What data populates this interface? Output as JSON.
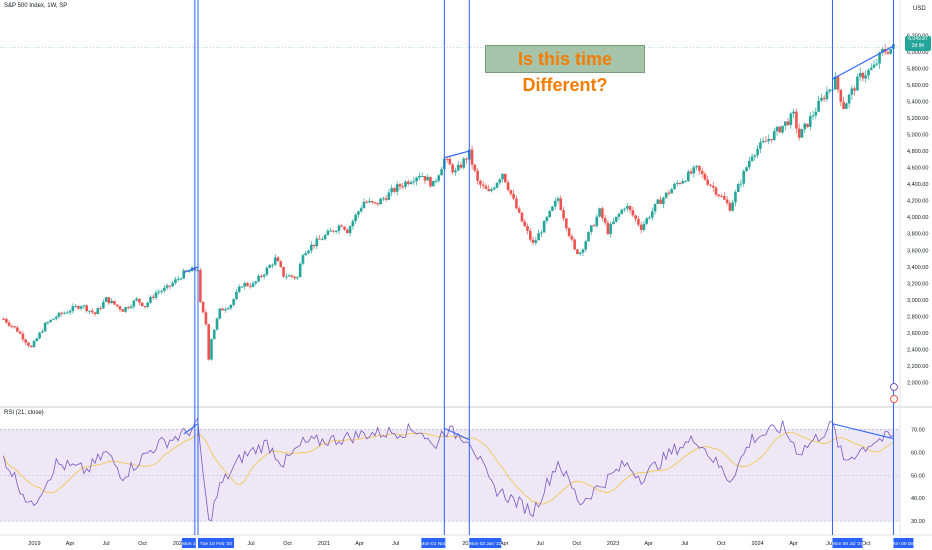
{
  "header": {
    "symbol_title": "S&P 500 Index, 1W, SP",
    "currency": "USD",
    "rsi_title": "RSI (21, close)"
  },
  "annotation": {
    "text": "Is this time Different?"
  },
  "price_tag": {
    "value": "6,049.87",
    "countdown": "2d 9h"
  },
  "colors": {
    "up": "#26a69a",
    "down": "#ef5350",
    "accent_line": "#2962ff",
    "rsi_line": "#7e57c2",
    "rsi_ma": "#f5c542",
    "rsi_band": "#ede7f6",
    "annotation_bg": "#a5c4aa",
    "annotation_text": "#f57c00"
  },
  "icons": [
    "alert-icon",
    "flag-icon"
  ],
  "chart_data": [
    {
      "type": "candlestick",
      "title": "S&P 500 Index, 1W, SP",
      "ylabel": "USD",
      "ylim": [
        1850,
        6300
      ],
      "y_ticks": [
        "6,200.00",
        "6,000.00",
        "5,800.00",
        "5,600.00",
        "5,400.00",
        "5,200.00",
        "5,000.00",
        "4,800.00",
        "4,600.00",
        "4,400.00",
        "4,200.00",
        "4,000.00",
        "3,800.00",
        "3,600.00",
        "3,400.00",
        "3,200.00",
        "3,000.00",
        "2,800.00",
        "2,600.00",
        "2,400.00",
        "2,200.00",
        "2,000.00"
      ],
      "x_ticks": [
        "2019",
        "Apr",
        "Jul",
        "Oct",
        "2020",
        "Apr",
        "Jul",
        "Oct",
        "2021",
        "Apr",
        "Jul",
        "Oct",
        "2022",
        "Apr",
        "Jul",
        "Oct",
        "2023",
        "Apr",
        "Jul",
        "Oct",
        "2024",
        "Apr",
        "Jul",
        "Oct"
      ],
      "x_range": [
        "2018-10",
        "2024-12"
      ],
      "last_close": 6049.87,
      "close_anchors": [
        [
          "2018-10-15",
          2770
        ],
        [
          "2018-11-19",
          2630
        ],
        [
          "2018-12-24",
          2420
        ],
        [
          "2019-01-28",
          2700
        ],
        [
          "2019-02-25",
          2800
        ],
        [
          "2019-04-01",
          2880
        ],
        [
          "2019-04-29",
          2940
        ],
        [
          "2019-06-03",
          2830
        ],
        [
          "2019-07-01",
          3010
        ],
        [
          "2019-08-12",
          2880
        ],
        [
          "2019-09-16",
          3000
        ],
        [
          "2019-10-07",
          2930
        ],
        [
          "2019-11-04",
          3090
        ],
        [
          "2019-12-02",
          3140
        ],
        [
          "2020-01-13",
          3320
        ],
        [
          "2020-02-17",
          3380
        ],
        [
          "2020-02-24",
          2950
        ],
        [
          "2020-03-09",
          2710
        ],
        [
          "2020-03-16",
          2300
        ],
        [
          "2020-03-23",
          2540
        ],
        [
          "2020-04-13",
          2870
        ],
        [
          "2020-05-11",
          2950
        ],
        [
          "2020-06-08",
          3190
        ],
        [
          "2020-07-06",
          3180
        ],
        [
          "2020-08-10",
          3370
        ],
        [
          "2020-09-01",
          3500
        ],
        [
          "2020-09-21",
          3300
        ],
        [
          "2020-10-26",
          3270
        ],
        [
          "2020-11-09",
          3580
        ],
        [
          "2020-12-28",
          3750
        ],
        [
          "2021-02-15",
          3920
        ],
        [
          "2021-03-01",
          3840
        ],
        [
          "2021-04-12",
          4190
        ],
        [
          "2021-05-10",
          4150
        ],
        [
          "2021-07-05",
          4360
        ],
        [
          "2021-09-01",
          4530
        ],
        [
          "2021-10-04",
          4390
        ],
        [
          "2021-11-01",
          4700
        ],
        [
          "2021-11-29",
          4540
        ],
        [
          "2022-01-03",
          4770
        ],
        [
          "2022-01-24",
          4420
        ],
        [
          "2022-02-21",
          4290
        ],
        [
          "2022-03-28",
          4540
        ],
        [
          "2022-05-09",
          4020
        ],
        [
          "2022-06-13",
          3670
        ],
        [
          "2022-07-04",
          3850
        ],
        [
          "2022-08-15",
          4230
        ],
        [
          "2022-09-26",
          3590
        ],
        [
          "2022-10-10",
          3580
        ],
        [
          "2022-11-28",
          4070
        ],
        [
          "2022-12-19",
          3830
        ],
        [
          "2023-02-01",
          4150
        ],
        [
          "2023-03-13",
          3880
        ],
        [
          "2023-04-24",
          4170
        ],
        [
          "2023-06-12",
          4410
        ],
        [
          "2023-07-31",
          4580
        ],
        [
          "2023-09-18",
          4320
        ],
        [
          "2023-10-23",
          4120
        ],
        [
          "2023-12-18",
          4770
        ],
        [
          "2024-02-12",
          5010
        ],
        [
          "2024-04-01",
          5230
        ],
        [
          "2024-04-15",
          4970
        ],
        [
          "2024-06-17",
          5470
        ],
        [
          "2024-07-15",
          5650
        ],
        [
          "2024-08-05",
          5340
        ],
        [
          "2024-09-16",
          5700
        ],
        [
          "2024-10-21",
          5810
        ],
        [
          "2024-11-11",
          6000
        ],
        [
          "2024-12-09",
          6049.87
        ]
      ]
    },
    {
      "type": "line",
      "title": "RSI (21, close)",
      "ylim": [
        27,
        75
      ],
      "y_ticks": [
        "70.00",
        "60.00",
        "50.00",
        "40.00",
        "30.00"
      ],
      "bands": [
        30,
        70
      ],
      "midline": 50,
      "series_anchors": [
        [
          "2018-10-15",
          58
        ],
        [
          "2018-12-24",
          36
        ],
        [
          "2019-02-25",
          55
        ],
        [
          "2019-05-13",
          52
        ],
        [
          "2019-07-01",
          60
        ],
        [
          "2019-08-12",
          50
        ],
        [
          "2019-11-04",
          63
        ],
        [
          "2020-01-13",
          68
        ],
        [
          "2020-02-17",
          72
        ],
        [
          "2020-03-16",
          29
        ],
        [
          "2020-04-13",
          45
        ],
        [
          "2020-06-08",
          58
        ],
        [
          "2020-08-10",
          64
        ],
        [
          "2020-09-21",
          55
        ],
        [
          "2020-11-09",
          64
        ],
        [
          "2021-02-15",
          66
        ],
        [
          "2021-04-12",
          68
        ],
        [
          "2021-07-05",
          69
        ],
        [
          "2021-09-01",
          70
        ],
        [
          "2021-10-04",
          62
        ],
        [
          "2021-11-01",
          70
        ],
        [
          "2022-01-03",
          66
        ],
        [
          "2022-03-01",
          45
        ],
        [
          "2022-06-13",
          34
        ],
        [
          "2022-08-15",
          56
        ],
        [
          "2022-10-10",
          38
        ],
        [
          "2023-02-01",
          55
        ],
        [
          "2023-03-13",
          49
        ],
        [
          "2023-06-12",
          62
        ],
        [
          "2023-07-31",
          66
        ],
        [
          "2023-10-23",
          48
        ],
        [
          "2023-12-18",
          66
        ],
        [
          "2024-03-04",
          71
        ],
        [
          "2024-04-15",
          60
        ],
        [
          "2024-07-08",
          72
        ],
        [
          "2024-08-05",
          56
        ],
        [
          "2024-10-21",
          65
        ],
        [
          "2024-12-09",
          67
        ]
      ]
    }
  ],
  "markers": [
    {
      "date": "2020-02-10",
      "label": "Mon 1"
    },
    {
      "date": "2020-02-18",
      "label": "Tue 18 Feb '20"
    },
    {
      "date": "2021-11-01",
      "label": "Mon 01 Nov"
    },
    {
      "date": "2022-01-03",
      "label": "Mon 03 Jan '22"
    },
    {
      "date": "2024-07-08",
      "label": "Mon 08 Jul '24"
    },
    {
      "date": "2024-12-09",
      "label": "Mon 09 Dec"
    }
  ],
  "divergences": [
    {
      "pane": "price",
      "from": [
        "2020-01-13",
        3330
      ],
      "to": [
        "2020-02-18",
        3400
      ]
    },
    {
      "pane": "price",
      "from": [
        "2021-11-01",
        4720
      ],
      "to": [
        "2022-01-03",
        4800
      ]
    },
    {
      "pane": "price",
      "from": [
        "2024-07-08",
        5670
      ],
      "to": [
        "2024-12-09",
        6070
      ]
    },
    {
      "pane": "rsi",
      "from": [
        "2020-01-13",
        68
      ],
      "to": [
        "2020-02-18",
        72.5
      ]
    },
    {
      "pane": "rsi",
      "from": [
        "2021-11-01",
        70.5
      ],
      "to": [
        "2022-01-03",
        65.5
      ]
    },
    {
      "pane": "rsi",
      "from": [
        "2024-07-08",
        72.5
      ],
      "to": [
        "2024-12-09",
        66
      ]
    }
  ]
}
